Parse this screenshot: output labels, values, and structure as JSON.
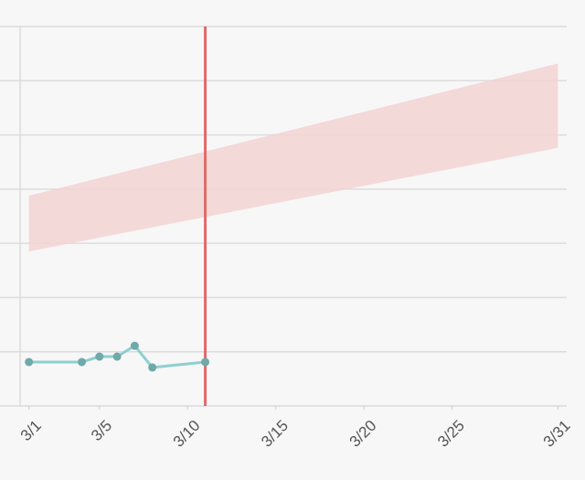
{
  "chart_data": {
    "type": "line",
    "xlim": [
      0.5,
      31.5
    ],
    "xticks": [
      {
        "value": 1,
        "label": "3/1"
      },
      {
        "value": 5,
        "label": "3/5"
      },
      {
        "value": 10,
        "label": "3/10"
      },
      {
        "value": 15,
        "label": "3/15"
      },
      {
        "value": 20,
        "label": "3/20"
      },
      {
        "value": 25,
        "label": "3/25"
      },
      {
        "value": 31,
        "label": "3/31"
      }
    ],
    "ylim": [
      0,
      7
    ],
    "yticks": [
      0,
      1,
      2,
      3,
      4,
      5,
      6,
      7
    ],
    "grid": true,
    "series": [
      {
        "color": "#8fcfcf",
        "marker_color": "#6fa9a9",
        "x": [
          "3/1",
          "3/4",
          "3/5",
          "3/6",
          "3/7",
          "3/8",
          "3/11"
        ],
        "values": [
          0.81,
          0.81,
          0.91,
          0.91,
          1.11,
          0.71,
          0.81
        ]
      }
    ],
    "band": {
      "color": "#f3d3d3",
      "x": [
        "3/1",
        "3/31"
      ],
      "lower": [
        2.85,
        4.76
      ],
      "upper": [
        3.88,
        6.32
      ]
    },
    "marker_line": {
      "x": "3/11",
      "color": "#e06a6a"
    }
  }
}
